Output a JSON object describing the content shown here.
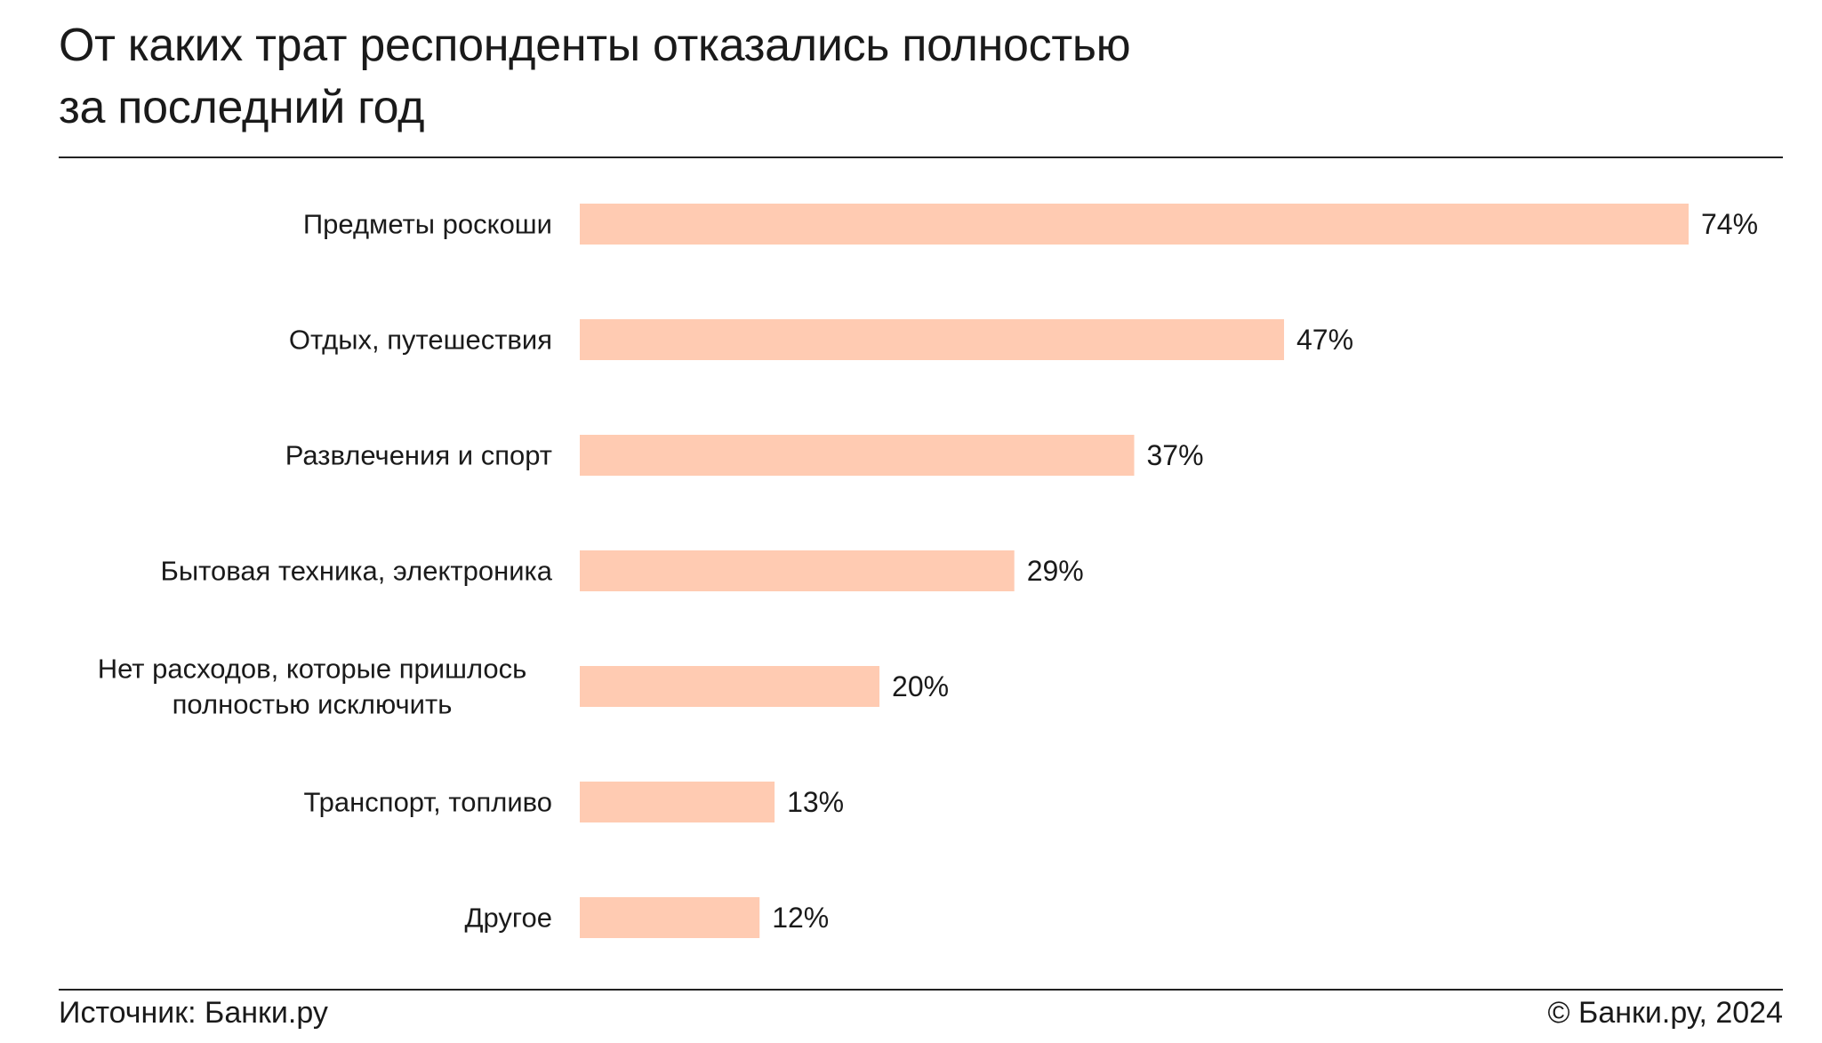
{
  "chart_data": {
    "type": "bar",
    "orientation": "horizontal",
    "title": "От каких трат респонденты отказались полностью за последний год",
    "title_lines": [
      "От каких трат респонденты отказались полностью",
      "за последний год"
    ],
    "categories": [
      "Предметы роскоши",
      "Отдых, путешествия",
      "Развлечения и спорт",
      "Бытовая техника, электроника",
      "Нет расходов, которые пришлось полностью исключить",
      "Транспорт, топливо",
      "Другое"
    ],
    "category_lines": [
      [
        "Предметы роскоши"
      ],
      [
        "Отдых, путешествия"
      ],
      [
        "Развлечения и спорт"
      ],
      [
        "Бытовая техника, электроника"
      ],
      [
        "Нет расходов, которые пришлось",
        "полностью исключить"
      ],
      [
        "Транспорт, топливо"
      ],
      [
        "Другое"
      ]
    ],
    "values": [
      74,
      47,
      37,
      29,
      20,
      13,
      12
    ],
    "value_labels": [
      "74%",
      "47%",
      "37%",
      "29%",
      "20%",
      "13%",
      "12%"
    ],
    "unit": "%",
    "xlim": [
      0,
      74
    ],
    "grid": false,
    "bar_color": "#ffcbb2"
  },
  "footer": {
    "source": "Источник: Банки.ру",
    "copyright": "© Банки.ру, 2024"
  }
}
